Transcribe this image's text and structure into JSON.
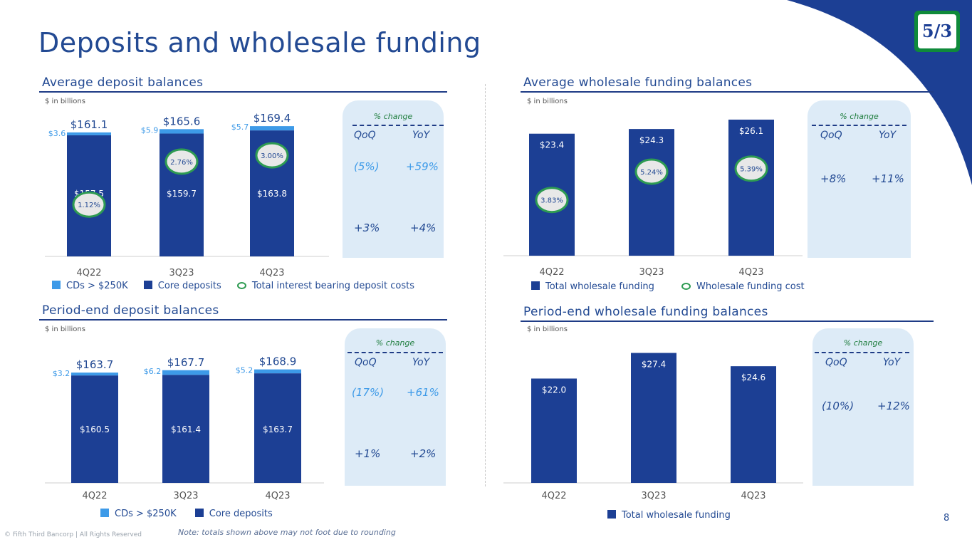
{
  "title": "Deposits and wholesale funding",
  "logo_text": "5/3",
  "footer": "© Fifth Third Bancorp | All Rights Reserved",
  "note": "Note: totals shown above may not foot due to rounding",
  "page_number": "8",
  "colors": {
    "core": "#1c3f94",
    "cd": "#3d9ae8",
    "title": "#234a93",
    "ring": "#2e9b52",
    "panel": "#ddebf7",
    "ring_fill": "#e8e8e8"
  },
  "sections": [
    {
      "title": "Average deposit balances",
      "units": "$ in billions",
      "legend": [
        "CDs > $250K",
        "Core deposits",
        "Total interest bearing deposit costs"
      ],
      "panel": {
        "header": "% change",
        "cols": [
          "QoQ",
          "YoY"
        ],
        "rows": [
          [
            "(5%)",
            "+59%"
          ],
          [
            "+3%",
            "+4%"
          ]
        ]
      }
    },
    {
      "title": "Average wholesale funding balances",
      "units": "$ in billions",
      "legend": [
        "Total wholesale funding",
        "Wholesale funding cost"
      ],
      "panel": {
        "header": "% change",
        "cols": [
          "QoQ",
          "YoY"
        ],
        "rows": [
          [
            "+8%",
            "+11%"
          ]
        ]
      }
    },
    {
      "title": "Period-end deposit balances",
      "units": "$ in billions",
      "legend": [
        "CDs > $250K",
        "Core deposits"
      ],
      "panel": {
        "header": "% change",
        "cols": [
          "QoQ",
          "YoY"
        ],
        "rows": [
          [
            "(17%)",
            "+61%"
          ],
          [
            "+1%",
            "+2%"
          ]
        ]
      }
    },
    {
      "title": "Period-end wholesale funding balances",
      "units": "$ in billions",
      "legend": [
        "Total wholesale funding"
      ],
      "panel": {
        "header": "% change",
        "cols": [
          "QoQ",
          "YoY"
        ],
        "rows": [
          [
            "(10%)",
            "+12%"
          ]
        ]
      }
    }
  ],
  "chart_data": [
    {
      "type": "bar",
      "stacked": true,
      "title": "Average deposit balances",
      "categories": [
        "4Q22",
        "3Q23",
        "4Q23"
      ],
      "series": [
        {
          "name": "Core deposits",
          "values": [
            157.5,
            159.7,
            163.8
          ]
        },
        {
          "name": "CDs > $250K",
          "values": [
            3.6,
            5.9,
            5.7
          ]
        }
      ],
      "totals": [
        "$161.1",
        "$165.6",
        "$169.4"
      ],
      "core_labels": [
        "$157.5",
        "$159.7",
        "$163.8"
      ],
      "cd_labels": [
        "$3.6",
        "$5.9",
        "$5.7"
      ],
      "rate_series": {
        "name": "Total interest bearing deposit costs",
        "values": [
          1.12,
          2.76,
          3.0
        ],
        "labels": [
          "1.12%",
          "2.76%",
          "3.00%"
        ]
      }
    },
    {
      "type": "bar",
      "title": "Average wholesale funding balances",
      "categories": [
        "4Q22",
        "3Q23",
        "4Q23"
      ],
      "series": [
        {
          "name": "Total wholesale funding",
          "values": [
            23.4,
            24.3,
            26.1
          ]
        }
      ],
      "labels": [
        "$23.4",
        "$24.3",
        "$26.1"
      ],
      "rate_series": {
        "name": "Wholesale funding cost",
        "values": [
          3.83,
          5.24,
          5.39
        ],
        "labels": [
          "3.83%",
          "5.24%",
          "5.39%"
        ]
      }
    },
    {
      "type": "bar",
      "stacked": true,
      "title": "Period-end deposit balances",
      "categories": [
        "4Q22",
        "3Q23",
        "4Q23"
      ],
      "series": [
        {
          "name": "Core deposits",
          "values": [
            160.5,
            161.4,
            163.7
          ]
        },
        {
          "name": "CDs > $250K",
          "values": [
            3.2,
            6.2,
            5.2
          ]
        }
      ],
      "totals": [
        "$163.7",
        "$167.7",
        "$168.9"
      ],
      "core_labels": [
        "$160.5",
        "$161.4",
        "$163.7"
      ],
      "cd_labels": [
        "$3.2",
        "$6.2",
        "$5.2"
      ]
    },
    {
      "type": "bar",
      "title": "Period-end wholesale funding balances",
      "categories": [
        "4Q22",
        "3Q23",
        "4Q23"
      ],
      "series": [
        {
          "name": "Total wholesale funding",
          "values": [
            22.0,
            27.4,
            24.6
          ]
        }
      ],
      "labels": [
        "$22.0",
        "$27.4",
        "$24.6"
      ]
    }
  ]
}
